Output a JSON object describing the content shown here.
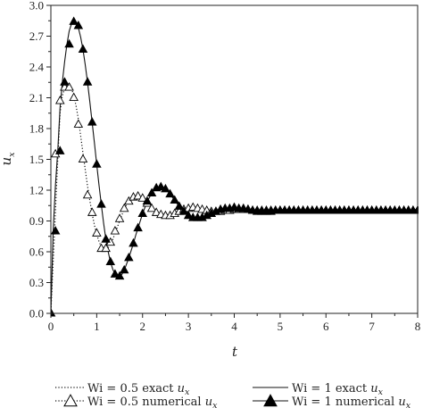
{
  "chart_data": {
    "type": "line",
    "title": "",
    "xlabel": "t",
    "ylabel_main": "u",
    "ylabel_sub": "x",
    "xlim": [
      0,
      8
    ],
    "ylim": [
      0,
      3.0
    ],
    "xticks": [
      "0",
      "1",
      "2",
      "3",
      "4",
      "5",
      "6",
      "7",
      "8"
    ],
    "yticks": [
      "0.0",
      "0.3",
      "0.6",
      "0.9",
      "1.2",
      "1.5",
      "1.8",
      "2.1",
      "2.4",
      "2.7",
      "3.0"
    ],
    "grid": false,
    "legend_position": "bottom",
    "legend": [
      {
        "prefix": "Wi = 0.5 exact ",
        "var": "u",
        "sub": "x"
      },
      {
        "prefix": "Wi = 1 exact ",
        "var": "u",
        "sub": "x"
      },
      {
        "prefix": "Wi = 0.5 numerical ",
        "var": "u",
        "sub": "x"
      },
      {
        "prefix": "Wi = 1 numerical ",
        "var": "u",
        "sub": "x"
      }
    ],
    "series": [
      {
        "name": "Wi = 0.5 exact u_x",
        "style": "dotted",
        "x": [
          0,
          0.05,
          0.1,
          0.15,
          0.2,
          0.25,
          0.3,
          0.35,
          0.4,
          0.45,
          0.5,
          0.55,
          0.6,
          0.65,
          0.7,
          0.75,
          0.8,
          0.85,
          0.9,
          0.95,
          1.0,
          1.05,
          1.1,
          1.15,
          1.2,
          1.25,
          1.3,
          1.35,
          1.4,
          1.45,
          1.5,
          1.55,
          1.6,
          1.65,
          1.7,
          1.75,
          1.8,
          1.85,
          1.9,
          1.95,
          2.0,
          2.05,
          2.1,
          2.15,
          2.2,
          2.25,
          2.3,
          2.35,
          2.4,
          2.45,
          2.5,
          2.55,
          2.6,
          2.65,
          2.7,
          2.75,
          2.8,
          2.85,
          2.9,
          2.95,
          3.0,
          3.05,
          3.1,
          3.15,
          3.2,
          3.25,
          3.3,
          3.35,
          3.4,
          3.45,
          3.5,
          3.55,
          3.6,
          3.65,
          3.7,
          3.75,
          3.8,
          3.85,
          3.9,
          3.95,
          4.0,
          4.05,
          4.1,
          4.15,
          4.2,
          4.25,
          4.3,
          4.35,
          4.4,
          4.45,
          4.5,
          4.55,
          4.6,
          4.65,
          4.7,
          4.75,
          4.8,
          4.85,
          4.9,
          4.95,
          5.0,
          5.05,
          5.1,
          5.15,
          5.2,
          5.25,
          5.3,
          5.35,
          5.4,
          5.45,
          5.5,
          5.55,
          5.6,
          5.65,
          5.7,
          5.75,
          5.8,
          5.85,
          5.9,
          5.95,
          6.0,
          6.05,
          6.1,
          6.15,
          6.2,
          6.25,
          6.3,
          6.35,
          6.4,
          6.45,
          6.5,
          6.55,
          6.6,
          6.65,
          6.7,
          6.75,
          6.8,
          6.85,
          6.9,
          6.95,
          7.0,
          7.05,
          7.1,
          7.15,
          7.2,
          7.25,
          7.3,
          7.35,
          7.4,
          7.45,
          7.5,
          7.55,
          7.6,
          7.65,
          7.7,
          7.75,
          7.8,
          7.85,
          7.9,
          7.95,
          8.0
        ],
        "y": [
          0.0,
          0.5,
          1.0,
          1.5,
          1.95,
          2.12,
          2.19,
          2.21,
          2.21,
          2.19,
          2.12,
          2.02,
          1.89,
          1.73,
          1.56,
          1.4,
          1.24,
          1.1,
          0.97,
          0.86,
          0.77,
          0.7,
          0.65,
          0.63,
          0.62,
          0.64,
          0.67,
          0.72,
          0.78,
          0.84,
          0.9,
          0.96,
          1.01,
          1.06,
          1.09,
          1.12,
          1.13,
          1.14,
          1.14,
          1.13,
          1.12,
          1.1,
          1.08,
          1.05,
          1.03,
          1.01,
          0.99,
          0.97,
          0.96,
          0.95,
          0.95,
          0.95,
          0.95,
          0.96,
          0.97,
          0.98,
          0.99,
          1.0,
          1.01,
          1.02,
          1.02,
          1.03,
          1.03,
          1.03,
          1.02,
          1.02,
          1.01,
          1.01,
          1.0,
          1.0,
          0.99,
          0.99,
          0.99,
          0.99,
          0.99,
          0.99,
          1.0,
          1.0,
          1.0,
          1.0,
          1.0,
          1.01,
          1.01,
          1.01,
          1.01,
          1.01,
          1.01,
          1.0,
          1.0,
          1.0,
          1.0,
          1.0,
          1.0,
          1.0,
          1.0,
          1.0,
          1.0,
          1.0,
          1.0,
          1.0,
          1.0,
          1.0,
          1.0,
          1.0,
          1.0,
          1.0,
          1.0,
          1.0,
          1.0,
          1.0,
          1.0,
          1.0,
          1.0,
          1.0,
          1.0,
          1.0,
          1.0,
          1.0,
          1.0,
          1.0,
          1.0,
          1.0,
          1.0,
          1.0,
          1.0,
          1.0,
          1.0,
          1.0,
          1.0,
          1.0,
          1.0,
          1.0,
          1.0,
          1.0,
          1.0,
          1.0,
          1.0,
          1.0,
          1.0,
          1.0,
          1.0,
          1.0,
          1.0,
          1.0,
          1.0,
          1.0,
          1.0,
          1.0,
          1.0,
          1.0,
          1.0,
          1.0,
          1.0,
          1.0,
          1.0,
          1.0,
          1.0,
          1.0,
          1.0,
          1.0,
          1.0
        ]
      },
      {
        "name": "Wi = 1 exact u_x",
        "style": "solid",
        "x": [
          0,
          0.05,
          0.1,
          0.15,
          0.2,
          0.25,
          0.3,
          0.35,
          0.4,
          0.45,
          0.5,
          0.55,
          0.6,
          0.65,
          0.7,
          0.75,
          0.8,
          0.85,
          0.9,
          0.95,
          1.0,
          1.05,
          1.1,
          1.15,
          1.2,
          1.25,
          1.3,
          1.35,
          1.4,
          1.45,
          1.5,
          1.55,
          1.6,
          1.65,
          1.7,
          1.75,
          1.8,
          1.85,
          1.9,
          1.95,
          2.0,
          2.05,
          2.1,
          2.15,
          2.2,
          2.25,
          2.3,
          2.35,
          2.4,
          2.45,
          2.5,
          2.55,
          2.6,
          2.65,
          2.7,
          2.75,
          2.8,
          2.85,
          2.9,
          2.95,
          3.0,
          3.05,
          3.1,
          3.15,
          3.2,
          3.25,
          3.3,
          3.35,
          3.4,
          3.45,
          3.5,
          3.55,
          3.6,
          3.65,
          3.7,
          3.75,
          3.8,
          3.85,
          3.9,
          3.95,
          4.0,
          4.05,
          4.1,
          4.15,
          4.2,
          4.25,
          4.3,
          4.35,
          4.4,
          4.45,
          4.5,
          4.55,
          4.6,
          4.65,
          4.7,
          4.75,
          4.8,
          4.85,
          4.9,
          4.95,
          5.0,
          5.05,
          5.1,
          5.15,
          5.2,
          5.25,
          5.3,
          5.35,
          5.4,
          5.45,
          5.5,
          5.55,
          5.6,
          5.65,
          5.7,
          5.75,
          5.8,
          5.85,
          5.9,
          5.95,
          6.0,
          6.05,
          6.1,
          6.15,
          6.2,
          6.25,
          6.3,
          6.35,
          6.4,
          6.45,
          6.5,
          6.55,
          6.6,
          6.65,
          6.7,
          6.75,
          6.8,
          6.85,
          6.9,
          6.95,
          7.0,
          7.05,
          7.1,
          7.15,
          7.2,
          7.25,
          7.3,
          7.35,
          7.4,
          7.45,
          7.5,
          7.55,
          7.6,
          7.65,
          7.7,
          7.75,
          7.8,
          7.85,
          7.9,
          7.95,
          8.0
        ],
        "y": [
          0.0,
          0.8,
          1.25,
          1.58,
          2.0,
          2.25,
          2.45,
          2.62,
          2.75,
          2.82,
          2.84,
          2.83,
          2.78,
          2.69,
          2.57,
          2.42,
          2.25,
          2.06,
          1.86,
          1.66,
          1.45,
          1.25,
          1.06,
          0.88,
          0.72,
          0.6,
          0.5,
          0.43,
          0.38,
          0.36,
          0.36,
          0.38,
          0.42,
          0.48,
          0.54,
          0.61,
          0.68,
          0.76,
          0.83,
          0.9,
          0.97,
          1.03,
          1.09,
          1.13,
          1.17,
          1.2,
          1.22,
          1.23,
          1.23,
          1.22,
          1.21,
          1.19,
          1.16,
          1.13,
          1.1,
          1.07,
          1.04,
          1.01,
          0.99,
          0.97,
          0.95,
          0.94,
          0.93,
          0.93,
          0.93,
          0.93,
          0.93,
          0.94,
          0.95,
          0.96,
          0.97,
          0.98,
          0.99,
          1.0,
          1.01,
          1.01,
          1.02,
          1.02,
          1.02,
          1.03,
          1.03,
          1.03,
          1.02,
          1.02,
          1.02,
          1.01,
          1.01,
          1.0,
          1.0,
          0.99,
          0.99,
          0.99,
          0.99,
          0.99,
          0.99,
          0.99,
          0.99,
          1.0,
          1.0,
          1.0,
          1.0,
          1.0,
          1.0,
          1.0,
          1.0,
          1.0,
          1.0,
          1.0,
          1.0,
          1.0,
          1.0,
          1.0,
          1.0,
          1.0,
          1.0,
          1.0,
          1.0,
          1.0,
          1.0,
          1.0,
          1.0,
          1.0,
          1.0,
          1.0,
          1.0,
          1.0,
          1.0,
          1.0,
          1.0,
          1.0,
          1.0,
          1.0,
          1.0,
          1.0,
          1.0,
          1.0,
          1.0,
          1.0,
          1.0,
          1.0,
          1.0,
          1.0,
          1.0,
          1.0,
          1.0,
          1.0,
          1.0,
          1.0,
          1.0,
          1.0,
          1.0,
          1.0,
          1.0,
          1.0,
          1.0,
          1.0,
          1.0,
          1.0,
          1.0,
          1.0,
          1.0
        ]
      },
      {
        "name": "Wi = 0.5 numerical u_x",
        "marker": "open-triangle",
        "x": [
          0,
          0.1,
          0.2,
          0.3,
          0.4,
          0.5,
          0.6,
          0.7,
          0.8,
          0.9,
          1.0,
          1.1,
          1.2,
          1.3,
          1.4,
          1.5,
          1.6,
          1.7,
          1.8,
          1.9,
          2.0,
          2.1,
          2.2,
          2.3,
          2.4,
          2.5,
          2.6,
          2.7,
          2.8,
          2.9,
          3.0,
          3.1,
          3.2,
          3.3,
          3.4,
          3.5,
          3.6,
          3.7,
          3.8,
          3.9,
          4.0,
          4.1,
          4.2,
          4.3,
          4.4,
          4.5,
          4.6,
          4.7,
          4.8,
          4.9,
          5.0,
          5.1,
          5.2,
          5.3,
          5.4,
          5.5,
          5.6,
          5.7,
          5.8,
          5.9,
          6.0,
          6.1,
          6.2,
          6.3,
          6.4,
          6.5,
          6.6,
          6.7,
          6.8,
          6.9,
          7.0,
          7.1,
          7.2,
          7.3,
          7.4,
          7.5,
          7.6,
          7.7,
          7.8,
          7.9,
          8.0
        ],
        "y": [
          0.0,
          1.55,
          2.07,
          2.2,
          2.2,
          2.1,
          1.84,
          1.5,
          1.15,
          0.98,
          0.78,
          0.63,
          0.63,
          0.69,
          0.8,
          0.92,
          1.02,
          1.09,
          1.13,
          1.14,
          1.12,
          1.07,
          1.02,
          0.98,
          0.96,
          0.95,
          0.95,
          0.97,
          0.99,
          1.01,
          1.02,
          1.03,
          1.02,
          1.01,
          1.0,
          0.99,
          0.99,
          0.99,
          1.0,
          1.0,
          1.01,
          1.01,
          1.01,
          1.01,
          1.0,
          1.0,
          1.0,
          1.0,
          1.0,
          1.0,
          1.0,
          1.0,
          1.0,
          1.0,
          1.0,
          1.0,
          1.0,
          1.0,
          1.0,
          1.0,
          1.0,
          1.0,
          1.0,
          1.0,
          1.0,
          1.0,
          1.0,
          1.0,
          1.0,
          1.0,
          1.0,
          1.0,
          1.0,
          1.0,
          1.0,
          1.0,
          1.0,
          1.0,
          1.0,
          1.0,
          1.0
        ]
      },
      {
        "name": "Wi = 1 numerical u_x",
        "marker": "filled-triangle",
        "x": [
          0,
          0.1,
          0.2,
          0.3,
          0.4,
          0.5,
          0.6,
          0.7,
          0.8,
          0.9,
          1.0,
          1.1,
          1.2,
          1.3,
          1.4,
          1.5,
          1.6,
          1.7,
          1.8,
          1.9,
          2.0,
          2.1,
          2.2,
          2.3,
          2.4,
          2.5,
          2.6,
          2.7,
          2.8,
          2.9,
          3.0,
          3.1,
          3.2,
          3.3,
          3.4,
          3.5,
          3.6,
          3.7,
          3.8,
          3.9,
          4.0,
          4.1,
          4.2,
          4.3,
          4.4,
          4.5,
          4.6,
          4.7,
          4.8,
          4.9,
          5.0,
          5.1,
          5.2,
          5.3,
          5.4,
          5.5,
          5.6,
          5.7,
          5.8,
          5.9,
          6.0,
          6.1,
          6.2,
          6.3,
          6.4,
          6.5,
          6.6,
          6.7,
          6.8,
          6.9,
          7.0,
          7.1,
          7.2,
          7.3,
          7.4,
          7.5,
          7.6,
          7.7,
          7.8,
          7.9,
          8.0
        ],
        "y": [
          0.0,
          0.8,
          1.58,
          2.25,
          2.62,
          2.84,
          2.8,
          2.57,
          2.25,
          1.86,
          1.45,
          1.06,
          0.72,
          0.5,
          0.38,
          0.36,
          0.42,
          0.54,
          0.68,
          0.83,
          0.97,
          1.09,
          1.17,
          1.22,
          1.23,
          1.21,
          1.16,
          1.1,
          1.04,
          0.99,
          0.95,
          0.93,
          0.93,
          0.93,
          0.95,
          0.97,
          0.99,
          1.01,
          1.02,
          1.02,
          1.03,
          1.02,
          1.02,
          1.01,
          1.0,
          0.99,
          0.99,
          0.99,
          0.99,
          1.0,
          1.0,
          1.0,
          1.0,
          1.0,
          1.0,
          1.0,
          1.0,
          1.0,
          1.0,
          1.0,
          1.0,
          1.0,
          1.0,
          1.0,
          1.0,
          1.0,
          1.0,
          1.0,
          1.0,
          1.0,
          1.0,
          1.0,
          1.0,
          1.0,
          1.0,
          1.0,
          1.0,
          1.0,
          1.0,
          1.0,
          1.0
        ]
      }
    ]
  }
}
